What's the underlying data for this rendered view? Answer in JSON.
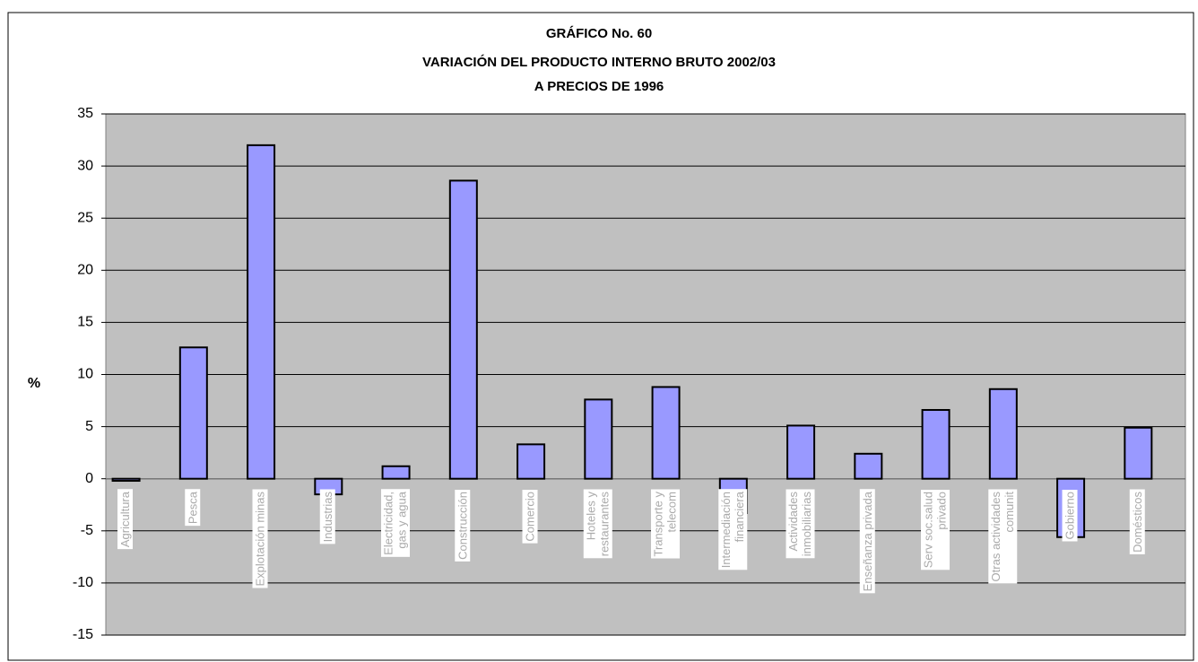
{
  "chart_data": {
    "type": "bar",
    "title": [
      "GRÁFICO No.  60",
      "VARIACIÓN DEL PRODUCTO INTERNO BRUTO  2002/03",
      "A PRECIOS DE 1996"
    ],
    "ylabel": "%",
    "categories": [
      "Agricultura",
      "Pesca",
      "Explotación minas",
      "Industrias",
      "Electricidad, gas y agua",
      "Construcción",
      "Comercio",
      "Hoteles y restaurantes",
      "Transporte y telecom",
      "Intermediación financiera",
      "Actividades inmobiliarias",
      "Enseñanza privada",
      "Serv soc.salud privado",
      "Otras actividades comunit",
      "Gobierno",
      "Domésticos"
    ],
    "values": [
      -0.2,
      12.6,
      32,
      -1.5,
      1.2,
      28.6,
      3.3,
      7.6,
      8.8,
      -3.3,
      5.1,
      2.4,
      6.6,
      8.6,
      -5.6,
      4.9
    ],
    "color": "#9999ff",
    "ylim": [
      -15,
      35
    ],
    "yticks": [
      -15,
      -10,
      -5,
      0,
      5,
      10,
      15,
      20,
      25,
      30,
      35
    ],
    "grid": true
  }
}
